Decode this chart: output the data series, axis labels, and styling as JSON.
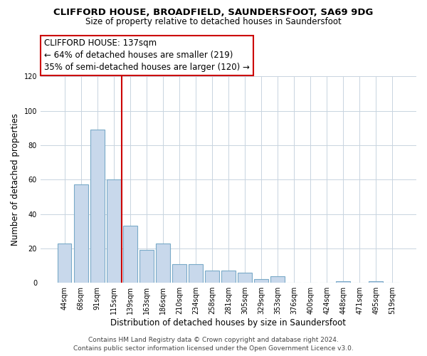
{
  "title": "CLIFFORD HOUSE, BROADFIELD, SAUNDERSFOOT, SA69 9DG",
  "subtitle": "Size of property relative to detached houses in Saundersfoot",
  "xlabel": "Distribution of detached houses by size in Saundersfoot",
  "ylabel": "Number of detached properties",
  "bar_labels": [
    "44sqm",
    "68sqm",
    "91sqm",
    "115sqm",
    "139sqm",
    "163sqm",
    "186sqm",
    "210sqm",
    "234sqm",
    "258sqm",
    "281sqm",
    "305sqm",
    "329sqm",
    "353sqm",
    "376sqm",
    "400sqm",
    "424sqm",
    "448sqm",
    "471sqm",
    "495sqm",
    "519sqm"
  ],
  "bar_values": [
    23,
    57,
    89,
    60,
    33,
    19,
    23,
    11,
    11,
    7,
    7,
    6,
    2,
    4,
    0,
    0,
    0,
    1,
    0,
    1,
    0
  ],
  "bar_color": "#c8d8eb",
  "bar_edge_color": "#7aaac8",
  "vline_color": "#cc0000",
  "annotation_line1": "CLIFFORD HOUSE: 137sqm",
  "annotation_line2": "← 64% of detached houses are smaller (219)",
  "annotation_line3": "35% of semi-detached houses are larger (120) →",
  "ylim": [
    0,
    120
  ],
  "yticks": [
    0,
    20,
    40,
    60,
    80,
    100,
    120
  ],
  "footer_line1": "Contains HM Land Registry data © Crown copyright and database right 2024.",
  "footer_line2": "Contains public sector information licensed under the Open Government Licence v3.0.",
  "background_color": "#ffffff",
  "grid_color": "#c8d4e0",
  "title_fontsize": 9.5,
  "subtitle_fontsize": 8.5,
  "ylabel_fontsize": 8.5,
  "xlabel_fontsize": 8.5,
  "tick_fontsize": 7.0,
  "annot_fontsize": 8.5,
  "footer_fontsize": 6.5
}
